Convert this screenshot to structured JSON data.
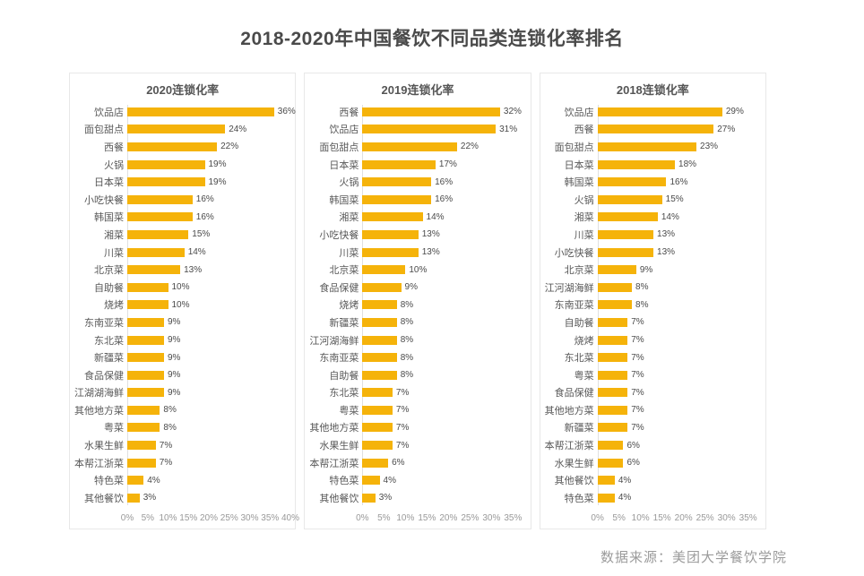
{
  "title": "2018-2020年中国餐饮不同品类连锁化率排名",
  "source_note": "数据来源：美团大学餐饮学院",
  "colors": {
    "bar": "#F5B30A",
    "title_text": "#4A4A4A",
    "header_text": "#555555",
    "category_text": "#595959",
    "value_text": "#4A4A4A",
    "tick_text": "#999999",
    "panel_border": "#E8E8E8",
    "axis_line": "#E0E0E0",
    "source_text": "#9B9B9B"
  },
  "chart_data": [
    {
      "type": "bar",
      "orientation": "horizontal",
      "title": "2020连锁化率",
      "unit": "%",
      "xlim": [
        0,
        40
      ],
      "grid": false,
      "ticks": [
        "0%",
        "5%",
        "10%",
        "15%",
        "20%",
        "25%",
        "30%",
        "35%",
        "40%"
      ],
      "categories": [
        "饮品店",
        "面包甜点",
        "西餐",
        "火锅",
        "日本菜",
        "小吃快餐",
        "韩国菜",
        "湘菜",
        "川菜",
        "北京菜",
        "自助餐",
        "烧烤",
        "东南亚菜",
        "东北菜",
        "新疆菜",
        "食品保健",
        "江湖湖海鲜",
        "其他地方菜",
        "粤菜",
        "水果生鲜",
        "本帮江浙菜",
        "特色菜",
        "其他餐饮"
      ],
      "values": [
        36,
        24,
        22,
        19,
        19,
        16,
        16,
        15,
        14,
        13,
        10,
        10,
        9,
        9,
        9,
        9,
        9,
        8,
        8,
        7,
        7,
        4,
        3
      ]
    },
    {
      "type": "bar",
      "orientation": "horizontal",
      "title": "2019连锁化率",
      "unit": "%",
      "xlim": [
        0,
        35
      ],
      "grid": false,
      "ticks": [
        "0%",
        "5%",
        "10%",
        "15%",
        "20%",
        "25%",
        "30%",
        "35%"
      ],
      "categories": [
        "西餐",
        "饮品店",
        "面包甜点",
        "日本菜",
        "火锅",
        "韩国菜",
        "湘菜",
        "小吃快餐",
        "川菜",
        "北京菜",
        "食品保健",
        "烧烤",
        "新疆菜",
        "江河湖海鲜",
        "东南亚菜",
        "自助餐",
        "东北菜",
        "粤菜",
        "其他地方菜",
        "水果生鲜",
        "本帮江浙菜",
        "特色菜",
        "其他餐饮"
      ],
      "values": [
        32,
        31,
        22,
        17,
        16,
        16,
        14,
        13,
        13,
        10,
        9,
        8,
        8,
        8,
        8,
        8,
        7,
        7,
        7,
        7,
        6,
        4,
        3
      ]
    },
    {
      "type": "bar",
      "orientation": "horizontal",
      "title": "2018连锁化率",
      "unit": "%",
      "xlim": [
        0,
        35
      ],
      "grid": false,
      "ticks": [
        "0%",
        "5%",
        "10%",
        "15%",
        "20%",
        "25%",
        "30%",
        "35%"
      ],
      "categories": [
        "饮品店",
        "西餐",
        "面包甜点",
        "日本菜",
        "韩国菜",
        "火锅",
        "湘菜",
        "川菜",
        "小吃快餐",
        "北京菜",
        "江河湖海鲜",
        "东南亚菜",
        "自助餐",
        "烧烤",
        "东北菜",
        "粤菜",
        "食品保健",
        "其他地方菜",
        "新疆菜",
        "本帮江浙菜",
        "水果生鲜",
        "其他餐饮",
        "特色菜"
      ],
      "values": [
        29,
        27,
        23,
        18,
        16,
        15,
        14,
        13,
        13,
        9,
        8,
        8,
        7,
        7,
        7,
        7,
        7,
        7,
        7,
        6,
        6,
        4,
        4
      ]
    }
  ]
}
